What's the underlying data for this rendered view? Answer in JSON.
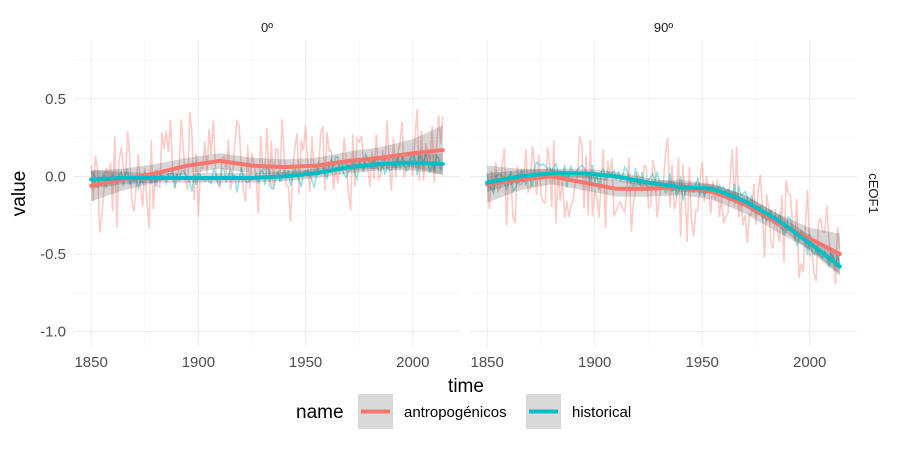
{
  "chart_data": {
    "type": "line",
    "xlabel": "time",
    "ylabel": "value",
    "xlim": [
      1842,
      2022
    ],
    "ylim": [
      -1.1,
      0.88
    ],
    "x_ticks": [
      1850,
      1900,
      1950,
      2000
    ],
    "y_ticks": [
      0.5,
      0.0,
      -0.5,
      -1.0
    ],
    "x_tick_labels": [
      "1850",
      "1900",
      "1950",
      "2000"
    ],
    "y_tick_labels": [
      "0.5",
      "0.0",
      "-0.5",
      "-1.0"
    ],
    "row_strip": "cEOF1",
    "grid": true,
    "legend": {
      "title": "name",
      "position": "bottom",
      "entries": [
        {
          "label": "antropogénicos",
          "color": "#F8766D"
        },
        {
          "label": "historical",
          "color": "#00BFC4"
        }
      ]
    },
    "panels": [
      {
        "strip": "0º",
        "series": [
          {
            "name": "antropogénicos",
            "color": "#F8766D",
            "type": "smooth",
            "x": [
              1850,
              1865,
              1880,
              1895,
              1910,
              1925,
              1940,
              1955,
              1970,
              1985,
              2000,
              2014
            ],
            "y": [
              -0.06,
              -0.02,
              0.02,
              0.07,
              0.1,
              0.07,
              0.06,
              0.07,
              0.1,
              0.12,
              0.15,
              0.17
            ],
            "band": [
              0.1,
              0.07,
              0.06,
              0.05,
              0.05,
              0.05,
              0.05,
              0.05,
              0.06,
              0.07,
              0.09,
              0.16
            ]
          },
          {
            "name": "historical",
            "color": "#00BFC4",
            "type": "smooth",
            "x": [
              1850,
              1865,
              1880,
              1895,
              1910,
              1925,
              1940,
              1955,
              1970,
              1985,
              2000,
              2014
            ],
            "y": [
              -0.02,
              -0.01,
              -0.01,
              -0.01,
              -0.01,
              -0.01,
              0.0,
              0.02,
              0.06,
              0.08,
              0.09,
              0.08
            ],
            "band": [
              0.06,
              0.04,
              0.03,
              0.03,
              0.03,
              0.03,
              0.03,
              0.03,
              0.04,
              0.04,
              0.05,
              0.07
            ]
          }
        ]
      },
      {
        "strip": "90º",
        "series": [
          {
            "name": "antropogénicos",
            "color": "#F8766D",
            "type": "smooth",
            "x": [
              1850,
              1865,
              1880,
              1895,
              1910,
              1925,
              1940,
              1955,
              1970,
              1985,
              2000,
              2014
            ],
            "y": [
              -0.05,
              -0.02,
              0.0,
              -0.04,
              -0.08,
              -0.08,
              -0.07,
              -0.1,
              -0.18,
              -0.3,
              -0.4,
              -0.5
            ],
            "band": [
              0.12,
              0.07,
              0.05,
              0.05,
              0.05,
              0.05,
              0.05,
              0.05,
              0.06,
              0.06,
              0.07,
              0.13
            ]
          },
          {
            "name": "historical",
            "color": "#00BFC4",
            "type": "smooth",
            "x": [
              1850,
              1865,
              1880,
              1895,
              1910,
              1925,
              1940,
              1955,
              1970,
              1985,
              2000,
              2014
            ],
            "y": [
              -0.04,
              0.0,
              0.02,
              0.02,
              0.0,
              -0.04,
              -0.07,
              -0.08,
              -0.16,
              -0.28,
              -0.43,
              -0.58
            ],
            "band": [
              0.06,
              0.04,
              0.03,
              0.03,
              0.03,
              0.03,
              0.03,
              0.03,
              0.04,
              0.04,
              0.05,
              0.06
            ]
          }
        ]
      }
    ]
  }
}
